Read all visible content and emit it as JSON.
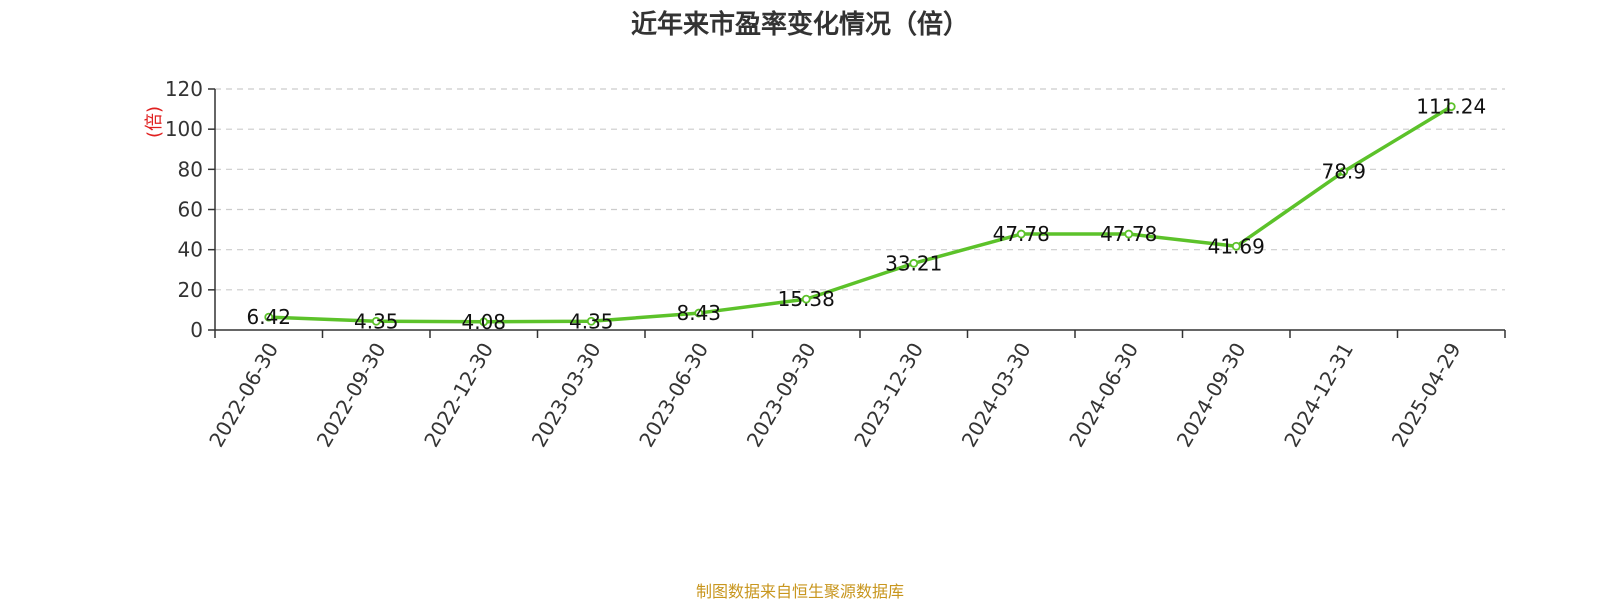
{
  "chart_data": {
    "type": "line",
    "title": "近年来市盈率变化情况（倍）",
    "ylabel": "(倍)",
    "xlabel": "",
    "source": "制图数据来自恒生聚源数据库",
    "categories": [
      "2022-06-30",
      "2022-09-30",
      "2022-12-30",
      "2023-03-30",
      "2023-06-30",
      "2023-09-30",
      "2023-12-30",
      "2024-03-30",
      "2024-06-30",
      "2024-09-30",
      "2024-12-31",
      "2025-04-29"
    ],
    "series": [
      {
        "values": [
          6.42,
          4.35,
          4.08,
          4.35,
          8.43,
          15.38,
          33.21,
          47.78,
          47.78,
          41.69,
          78.9,
          111.24
        ],
        "labels": [
          "6.42",
          "4.35",
          "4.08",
          "4.35",
          "8.43",
          "15.38",
          "33.21",
          "47.78",
          "47.78",
          "41.69",
          "78.9",
          "111.24"
        ]
      }
    ],
    "ylim": [
      0,
      120
    ],
    "yticks": [
      "0",
      "20",
      "40",
      "60",
      "80",
      "100",
      "120"
    ],
    "grid": true,
    "colors": {
      "line": "#5cc22a",
      "unit_label": "#e02020",
      "source_text": "#c8961e",
      "grid": "#cccccc"
    }
  }
}
